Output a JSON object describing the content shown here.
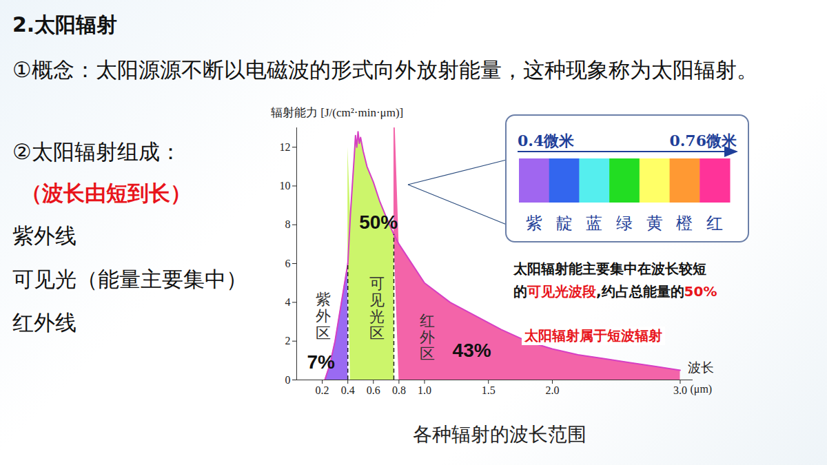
{
  "slide": {
    "title": "2.太阳辐射",
    "concept": "①概念：太阳源源不断以电磁波的形式向外放射能量，这种现象称为太阳辐射。",
    "composition_heading": "②太阳辐射组成：",
    "order_note": "（波长由短到长）",
    "components": [
      "紫外线",
      "可见光（能量主要集中）",
      "红外线"
    ]
  },
  "chart_data": {
    "type": "area",
    "title": "各种辐射的波长范围",
    "y_label": "辐射能力 [J/(cm²·min·μm)]",
    "x_label": "波长",
    "x_unit": "(μm)",
    "color": "#d63fc4",
    "series": [
      {
        "name": "紫外区",
        "color": "#9a6af2",
        "share_label": "7%",
        "x": [
          0.22,
          0.26,
          0.3,
          0.34,
          0.38,
          0.4
        ],
        "values": [
          0,
          0.8,
          2.0,
          3.6,
          5.2,
          6.0
        ]
      },
      {
        "name": "可见光区",
        "color": "#ccf56b",
        "share_label": "50%",
        "x": [
          0.4,
          0.42,
          0.44,
          0.45,
          0.46,
          0.47,
          0.48,
          0.49,
          0.5,
          0.52,
          0.55,
          0.6,
          0.65,
          0.7,
          0.76
        ],
        "values": [
          6.0,
          8.5,
          10.5,
          11.5,
          12.6,
          12.0,
          12.8,
          12.2,
          12.5,
          11.8,
          11.0,
          10.2,
          9.2,
          8.4,
          7.5
        ]
      },
      {
        "name": "红外区",
        "color": "#f364a9",
        "share_label": "43%",
        "x": [
          0.76,
          0.8,
          0.9,
          1.0,
          1.2,
          1.4,
          1.6,
          1.8,
          2.0,
          2.2,
          2.4,
          2.6,
          2.8,
          3.0
        ],
        "values": [
          7.5,
          7.0,
          6.0,
          5.0,
          4.0,
          3.3,
          2.6,
          2.0,
          1.6,
          1.3,
          1.1,
          0.9,
          0.7,
          0.5
        ]
      }
    ],
    "xlim": [
      0,
      3.1
    ],
    "xticks": [
      0.2,
      0.4,
      0.6,
      0.8,
      {
        "value": 1,
        "label": "1.0"
      },
      1.5,
      {
        "value": 2,
        "label": "2.0"
      },
      {
        "value": 3,
        "label": "3.0"
      }
    ],
    "ylim": [
      0,
      13
    ],
    "yticks": [
      0,
      2,
      4,
      6,
      8,
      10,
      12
    ],
    "grid": false
  },
  "spectrum_inset": {
    "start_label": "0.4微米",
    "end_label": "0.76微米",
    "colors": [
      {
        "name": "紫",
        "color": "#a066f0"
      },
      {
        "name": "靛",
        "color": "#3366ee"
      },
      {
        "name": "蓝",
        "color": "#55eeee"
      },
      {
        "name": "绿",
        "color": "#22dd22"
      },
      {
        "name": "黄",
        "color": "#ffff66"
      },
      {
        "name": "橙",
        "color": "#ff9933"
      },
      {
        "name": "红",
        "color": "#ff3399"
      }
    ]
  },
  "annotations": [
    {
      "segments": [
        {
          "text": "太阳辐射能主要集中在波长较短",
          "color": "#111111"
        }
      ]
    },
    {
      "segments": [
        {
          "text": "的",
          "color": "#111111"
        },
        {
          "text": "可见光波段",
          "color": "#e8141b"
        },
        {
          "text": ",约占总能量的",
          "color": "#111111"
        },
        {
          "text": "50%",
          "color": "#e8141b"
        }
      ]
    },
    {
      "segments": [
        {
          "text": "太阳辐射属于短波辐射",
          "color": "#e8141b"
        }
      ]
    }
  ]
}
